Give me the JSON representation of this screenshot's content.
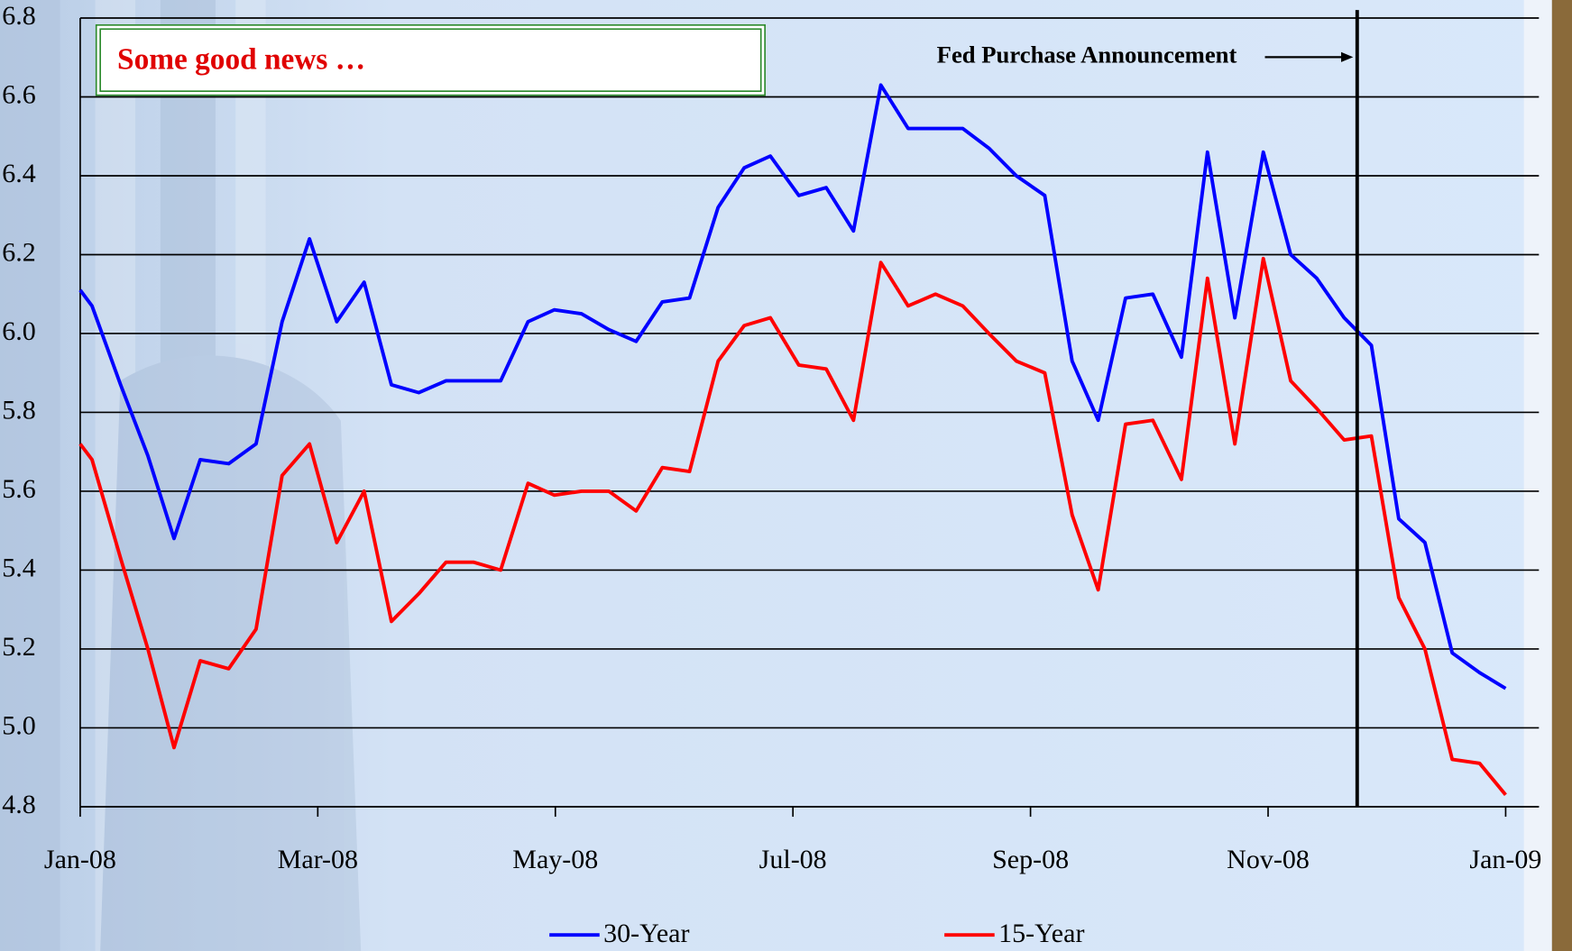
{
  "chart_data": {
    "type": "line",
    "annotations": [
      {
        "text": "Some good news …"
      },
      {
        "text": "Fed Purchase Announcement",
        "x": 10.75
      }
    ],
    "x": [
      0,
      0.1,
      0.34,
      0.57,
      0.79,
      1.01,
      1.25,
      1.48,
      1.7,
      1.93,
      2.16,
      2.39,
      2.62,
      2.85,
      3.08,
      3.31,
      3.54,
      3.77,
      3.99,
      4.22,
      4.45,
      4.68,
      4.9,
      5.13,
      5.37,
      5.59,
      5.81,
      6.05,
      6.28,
      6.51,
      6.74,
      6.97,
      7.2,
      7.43,
      7.65,
      7.88,
      8.12,
      8.35,
      8.57,
      8.8,
      9.03,
      9.27,
      9.49,
      9.72,
      9.96,
      10.19,
      10.41,
      10.64,
      10.87,
      11.1,
      11.32,
      11.55,
      11.78,
      12
    ],
    "series": [
      {
        "name": "30-Year",
        "color": "#0000ff",
        "values": [
          6.11,
          6.07,
          5.87,
          5.69,
          5.48,
          5.68,
          5.67,
          5.72,
          6.03,
          6.24,
          6.03,
          6.13,
          5.87,
          5.85,
          5.88,
          5.88,
          5.88,
          6.03,
          6.06,
          6.05,
          6.01,
          5.98,
          6.08,
          6.09,
          6.32,
          6.42,
          6.45,
          6.35,
          6.37,
          6.26,
          6.63,
          6.52,
          6.52,
          6.52,
          6.47,
          6.4,
          6.35,
          5.93,
          5.78,
          6.09,
          6.1,
          5.94,
          6.46,
          6.04,
          6.46,
          6.2,
          6.14,
          6.04,
          5.97,
          5.53,
          5.47,
          5.19,
          5.14,
          5.1
        ]
      },
      {
        "name": "15-Year",
        "color": "#ff0000",
        "values": [
          5.72,
          5.68,
          5.43,
          5.2,
          4.95,
          5.17,
          5.15,
          5.25,
          5.64,
          5.72,
          5.47,
          5.6,
          5.27,
          5.34,
          5.42,
          5.42,
          5.4,
          5.62,
          5.59,
          5.6,
          5.6,
          5.55,
          5.66,
          5.65,
          5.93,
          6.02,
          6.04,
          5.92,
          5.91,
          5.78,
          6.18,
          6.07,
          6.1,
          6.07,
          6.0,
          5.93,
          5.9,
          5.54,
          5.35,
          5.77,
          5.78,
          5.63,
          6.14,
          5.72,
          6.19,
          5.88,
          5.81,
          5.73,
          5.74,
          5.33,
          5.2,
          4.92,
          4.91,
          4.83
        ]
      }
    ],
    "xlim": [
      0,
      12.28
    ],
    "xticks": [
      {
        "value": 0,
        "label": "Jan-08"
      },
      {
        "value": 2,
        "label": "Mar-08"
      },
      {
        "value": 4,
        "label": "May-08"
      },
      {
        "value": 6,
        "label": "Jul-08"
      },
      {
        "value": 8,
        "label": "Sep-08"
      },
      {
        "value": 10,
        "label": "Nov-08"
      },
      {
        "value": 12,
        "label": "Jan-09"
      }
    ],
    "ylim": [
      4.8,
      6.8
    ],
    "yticks": [
      4.8,
      {
        "value": 5,
        "label": "5.0"
      },
      5.2,
      5.4,
      5.6,
      5.8,
      {
        "value": 6,
        "label": "6.0"
      },
      6.2,
      6.4,
      6.6,
      6.8
    ],
    "grid": true,
    "legend": "bottom"
  }
}
